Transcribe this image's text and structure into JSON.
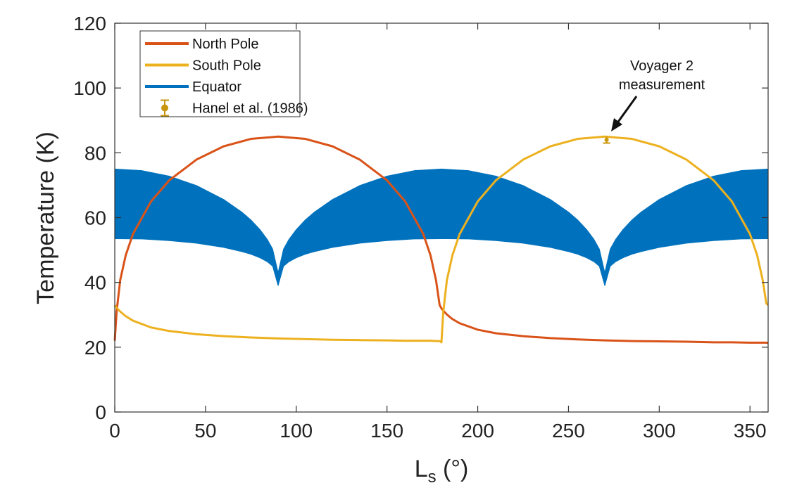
{
  "chart_data": {
    "type": "line",
    "title": "",
    "xlabel": "L",
    "xlabel_sub": "s",
    "xlabel_unit": " (°)",
    "ylabel": "Temperature (K)",
    "xlim": [
      0,
      360
    ],
    "ylim": [
      0,
      120
    ],
    "xticks": [
      0,
      50,
      100,
      150,
      200,
      250,
      300,
      350
    ],
    "yticks": [
      0,
      20,
      40,
      60,
      80,
      100,
      120
    ],
    "grid": false,
    "legend_position": "top-left",
    "colors": {
      "north": "#D95319",
      "south": "#EDB120",
      "equator": "#0072BD",
      "hanel": "#C8960C"
    },
    "series": [
      {
        "name": "North Pole",
        "key": "north",
        "x": [
          0,
          1,
          3,
          6,
          10,
          20,
          30,
          45,
          60,
          75,
          90,
          105,
          120,
          135,
          150,
          160,
          170,
          174,
          177,
          179,
          180,
          181,
          183,
          186,
          190,
          200,
          210,
          225,
          240,
          255,
          270,
          285,
          300,
          315,
          330,
          340,
          350,
          354,
          357,
          359,
          360
        ],
        "y": [
          22,
          30.9,
          40.7,
          48.3,
          54.9,
          65,
          71.5,
          77.9,
          82,
          84.3,
          85,
          84.3,
          82,
          77.9,
          71.5,
          65,
          54.9,
          48.3,
          40.7,
          33,
          32,
          31.3,
          30.1,
          28.7,
          27.4,
          25.4,
          24.3,
          23.4,
          22.8,
          22.4,
          22.1,
          21.9,
          21.8,
          21.7,
          21.5,
          21.5,
          21.4,
          21.4,
          21.4,
          21.4,
          21.3
        ]
      },
      {
        "name": "South Pole",
        "key": "south",
        "x": [
          0,
          1,
          3,
          6,
          10,
          20,
          30,
          45,
          60,
          75,
          90,
          105,
          120,
          135,
          150,
          160,
          170,
          174,
          177,
          179,
          180,
          181,
          183,
          186,
          190,
          200,
          210,
          225,
          240,
          255,
          270,
          285,
          300,
          315,
          330,
          340,
          350,
          354,
          357,
          359,
          360
        ],
        "y": [
          33,
          32.2,
          31,
          29.6,
          28.2,
          26.1,
          25,
          24,
          23.4,
          23,
          22.7,
          22.5,
          22.3,
          22.2,
          22.1,
          22,
          22,
          22,
          21.9,
          21.9,
          21.5,
          30.9,
          40.7,
          48.3,
          54.9,
          65,
          71.5,
          77.9,
          82,
          84.3,
          85,
          84.3,
          82,
          77.9,
          71.5,
          65,
          54.9,
          48.3,
          40.7,
          33.5,
          33
        ]
      },
      {
        "name": "Equator",
        "key": "equator",
        "kind": "band",
        "x": [
          0,
          15,
          30,
          45,
          60,
          70,
          75,
          80,
          84,
          87,
          90,
          93,
          96,
          100,
          105,
          110,
          120,
          135,
          150,
          165,
          180,
          195,
          210,
          225,
          240,
          250,
          255,
          260,
          264,
          267,
          270,
          273,
          276,
          280,
          285,
          290,
          300,
          315,
          330,
          345,
          360
        ],
        "upper": [
          75,
          74.5,
          72.8,
          69.9,
          65.6,
          61.7,
          59.3,
          56.3,
          53.3,
          50.3,
          43,
          50.3,
          53.3,
          56.3,
          59.3,
          61.7,
          65.6,
          69.9,
          72.8,
          74.5,
          75,
          74.5,
          72.8,
          69.9,
          65.6,
          61.7,
          59.3,
          56.3,
          53.3,
          50.3,
          43,
          50.3,
          53.3,
          56.3,
          59.3,
          61.7,
          65.6,
          69.9,
          72.8,
          74.5,
          75
        ],
        "lower": [
          53.5,
          53.4,
          52.9,
          52.1,
          50.8,
          49.5,
          48.7,
          47.6,
          46.4,
          45,
          39,
          45,
          46.4,
          47.6,
          48.7,
          49.5,
          50.8,
          52.1,
          52.9,
          53.4,
          53.5,
          53.4,
          52.9,
          52.1,
          50.8,
          49.5,
          48.7,
          47.6,
          46.4,
          45,
          39,
          45,
          46.4,
          47.6,
          48.7,
          49.5,
          50.8,
          52.1,
          52.9,
          53.4,
          53.5
        ]
      },
      {
        "name": "Hanel et al. (1986)",
        "key": "hanel",
        "kind": "errorbar",
        "x": [
          271
        ],
        "y": [
          84
        ],
        "err": [
          1
        ]
      }
    ],
    "annotations": [
      {
        "text_line1": "Voyager 2",
        "text_line2": "measurement",
        "target_x": 271,
        "target_y": 85
      }
    ]
  }
}
